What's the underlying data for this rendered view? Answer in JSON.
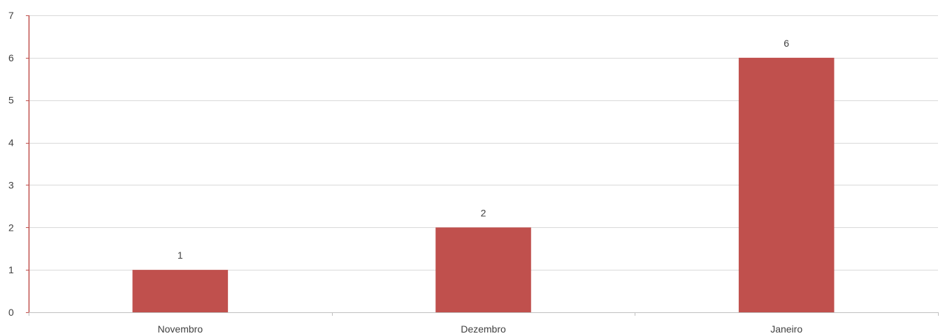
{
  "chart_data": {
    "type": "bar",
    "categories": [
      "Novembro",
      "Dezembro",
      "Janeiro"
    ],
    "values": [
      1,
      2,
      6
    ],
    "data_labels": [
      "1",
      "2",
      "6"
    ],
    "ylim": [
      0,
      7
    ],
    "yticks": [
      "0",
      "1",
      "2",
      "3",
      "4",
      "5",
      "6",
      "7"
    ],
    "grid": true,
    "legend": "none",
    "title": "",
    "xlabel": "",
    "ylabel": ""
  },
  "colors": {
    "bar": "#C0504D",
    "y_axis": "#C0504D",
    "x_axis": "#BFBFBF",
    "grid": "#D9D9D9",
    "text": "#404040"
  }
}
